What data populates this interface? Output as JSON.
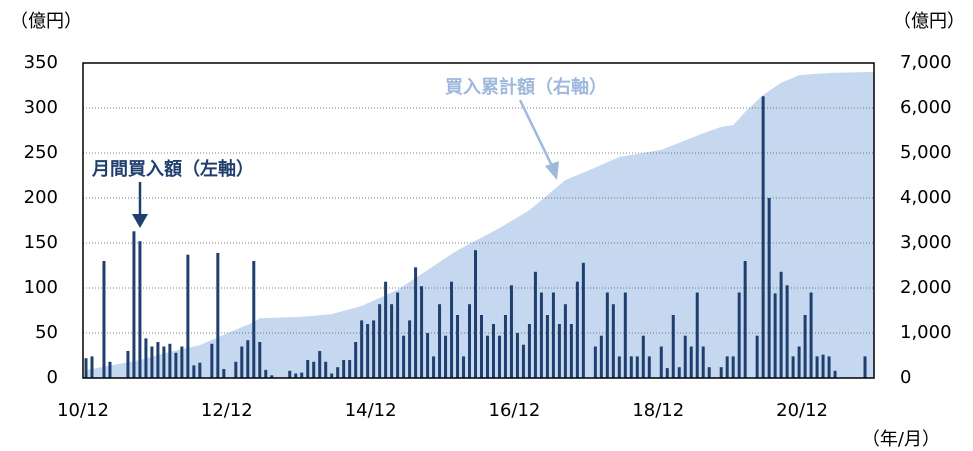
{
  "chart_data": {
    "type": "bar",
    "y_label": "（億円）",
    "y2_label": "（億円）",
    "x_label": "（年/月）",
    "categories": [
      "10/12",
      null,
      null,
      null,
      null,
      null,
      null,
      null,
      null,
      null,
      null,
      null,
      null,
      null,
      null,
      null,
      null,
      null,
      null,
      null,
      null,
      null,
      null,
      null,
      "12/12",
      null,
      null,
      null,
      null,
      null,
      null,
      null,
      null,
      null,
      null,
      null,
      null,
      null,
      null,
      null,
      null,
      null,
      null,
      null,
      null,
      null,
      null,
      null,
      "14/12",
      null,
      null,
      null,
      null,
      null,
      null,
      null,
      null,
      null,
      null,
      null,
      null,
      null,
      null,
      null,
      null,
      null,
      null,
      null,
      null,
      null,
      null,
      null,
      "16/12",
      null,
      null,
      null,
      null,
      null,
      null,
      null,
      null,
      null,
      null,
      null,
      null,
      null,
      null,
      null,
      null,
      null,
      null,
      null,
      null,
      null,
      null,
      null,
      "18/12",
      null,
      null,
      null,
      null,
      null,
      null,
      null,
      null,
      null,
      null,
      null,
      null,
      null,
      null,
      null,
      null,
      null,
      null,
      null,
      null,
      null,
      null,
      null,
      "20/12",
      null,
      null,
      null,
      null,
      null,
      null,
      null,
      null,
      null,
      null,
      null
    ],
    "series": [
      {
        "name": "月間買入額（左軸）",
        "color": "#1f3f6e",
        "values": [
          22,
          24,
          0,
          130,
          18,
          0,
          0,
          30,
          163,
          152,
          44,
          35,
          40,
          35,
          38,
          28,
          35,
          137,
          14,
          17,
          0,
          38,
          139,
          10,
          0,
          18,
          35,
          42,
          130,
          40,
          9,
          3,
          0,
          0,
          8,
          5,
          6,
          20,
          18,
          30,
          18,
          5,
          12,
          20,
          20,
          40,
          64,
          60,
          64,
          82,
          107,
          82,
          95,
          47,
          64,
          123,
          102,
          50,
          24,
          82,
          47,
          107,
          70,
          24,
          82,
          142,
          70,
          47,
          60,
          47,
          70,
          103,
          50,
          37,
          60,
          118,
          95,
          70,
          95,
          60,
          82,
          60,
          107,
          128,
          0,
          35,
          47,
          95,
          82,
          24,
          95,
          24,
          24,
          47,
          24,
          0,
          35,
          11,
          70,
          12,
          47,
          35,
          95,
          35,
          12,
          0,
          12,
          24,
          24,
          95,
          130,
          0,
          47,
          313,
          200,
          94,
          118,
          103,
          24,
          35,
          70,
          95,
          24,
          26,
          24,
          8,
          0,
          0,
          0,
          0,
          24,
          0
        ]
      },
      {
        "name": "買入累計額（右軸）",
        "color": "#c5d8f0",
        "axis": "y2",
        "type": "area",
        "values": [
          180,
          200,
          225,
          250,
          275,
          300,
          325,
          350,
          375,
          400,
          436,
          472,
          508,
          544,
          580,
          610,
          640,
          670,
          700,
          730,
          788,
          846,
          904,
          962,
          1020,
          1075,
          1130,
          1185,
          1240,
          1330,
          1334,
          1338,
          1343,
          1347,
          1351,
          1356,
          1360,
          1372,
          1384,
          1396,
          1408,
          1420,
          1456,
          1492,
          1528,
          1564,
          1600,
          1660,
          1720,
          1780,
          1840,
          1900,
          1960,
          2048,
          2136,
          2224,
          2312,
          2400,
          2488,
          2576,
          2664,
          2752,
          2840,
          2910,
          2980,
          3050,
          3120,
          3190,
          3260,
          3330,
          3410,
          3490,
          3570,
          3650,
          3730,
          3842,
          3953,
          4065,
          4177,
          4288,
          4400,
          4455,
          4510,
          4565,
          4620,
          4678,
          4736,
          4794,
          4852,
          4910,
          4933,
          4956,
          4979,
          5001,
          5024,
          5047,
          5070,
          5123,
          5176,
          5229,
          5281,
          5334,
          5387,
          5440,
          5487,
          5533,
          5580,
          5600,
          5620,
          5765,
          5910,
          6037,
          6163,
          6290,
          6380,
          6470,
          6560,
          6617,
          6673,
          6730,
          6740,
          6750,
          6760,
          6770,
          6780,
          6783,
          6786,
          6789,
          6792,
          6795,
          6798,
          6800
        ]
      }
    ],
    "ylim": [
      0,
      350
    ],
    "yticks": [
      0,
      50,
      100,
      150,
      200,
      250,
      300,
      350
    ],
    "y2lim": [
      0,
      7000
    ],
    "y2ticks": [
      0,
      {
        "value": 1000,
        "label": "1,000"
      },
      {
        "value": 2000,
        "label": "2,000"
      },
      {
        "value": 3000,
        "label": "3,000"
      },
      {
        "value": 4000,
        "label": "4,000"
      },
      {
        "value": 5000,
        "label": "5,000"
      },
      {
        "value": 6000,
        "label": "6,000"
      },
      {
        "value": 7000,
        "label": "7,000"
      }
    ],
    "grid": true
  }
}
